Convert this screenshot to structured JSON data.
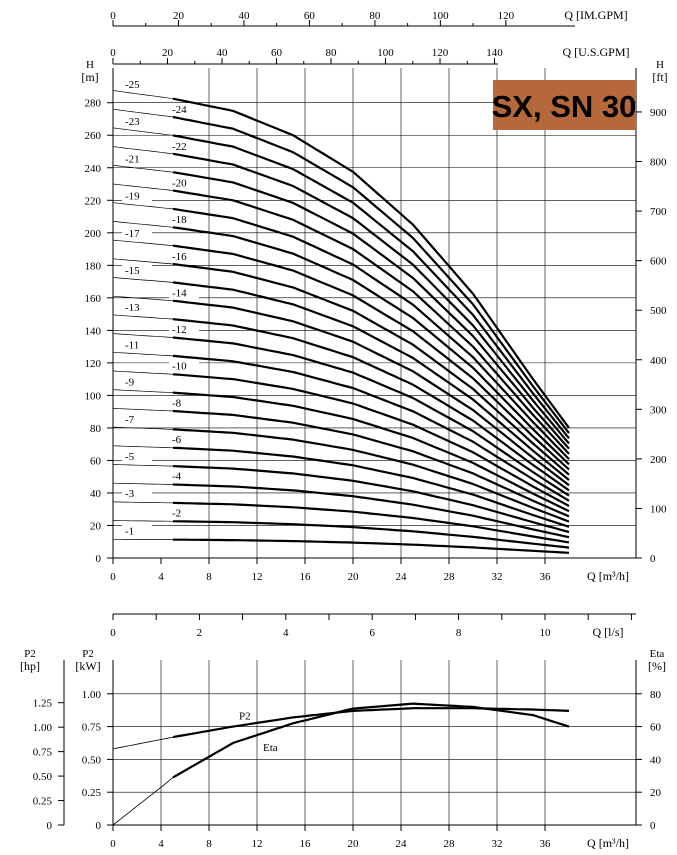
{
  "badge": {
    "text": "SX, SN 30",
    "color": "#b5683a"
  },
  "axes": {
    "imp_gpm": {
      "label": "Q  [IM.GPM]",
      "ticks": [
        "0",
        "20",
        "40",
        "60",
        "80",
        "100",
        "120"
      ]
    },
    "us_gpm": {
      "label": "Q  [U.S.GPM]",
      "ticks": [
        "0",
        "20",
        "40",
        "60",
        "80",
        "100",
        "120",
        "140"
      ]
    },
    "head_m": {
      "unit_top": "H",
      "unit_bottom": "[m]",
      "ticks": [
        "0",
        "20",
        "40",
        "60",
        "80",
        "100",
        "120",
        "140",
        "160",
        "180",
        "200",
        "220",
        "240",
        "260",
        "280"
      ]
    },
    "head_ft": {
      "unit_top": "H",
      "unit_bottom": "[ft]",
      "ticks": [
        "0",
        "100",
        "200",
        "300",
        "400",
        "500",
        "600",
        "700",
        "800",
        "900"
      ]
    },
    "flow_m3h": {
      "label": "Q  [m³/h]",
      "ticks": [
        "0",
        "4",
        "8",
        "12",
        "16",
        "20",
        "24",
        "28",
        "32",
        "36"
      ]
    },
    "flow_ls": {
      "label": "Q  [l/s]",
      "ticks": [
        "0",
        "2",
        "4",
        "6",
        "8",
        "10"
      ]
    },
    "p2_hp": {
      "unit_top": "P2",
      "unit_bottom": "[hp]",
      "ticks": [
        "0",
        "0.25",
        "0.50",
        "0.75",
        "1.00",
        "1.25"
      ]
    },
    "p2_kw": {
      "unit_top": "P2",
      "unit_bottom": "[kW]",
      "ticks": [
        "0",
        "0.25",
        "0.50",
        "0.75",
        "1.00"
      ]
    },
    "eta": {
      "unit_top": "Eta",
      "unit_bottom": "[%]",
      "ticks": [
        "0",
        "20",
        "40",
        "60",
        "80"
      ]
    }
  },
  "chart_data": [
    {
      "type": "line",
      "xlabel": "Q [m³/h]",
      "ylabel": "H [m]",
      "xlim": [
        0,
        44
      ],
      "ylim": [
        0,
        290
      ],
      "grid": true,
      "stage_labels": [
        "-1",
        "-2",
        "-3",
        "-4",
        "-5",
        "-6",
        "-7",
        "-8",
        "-9",
        "-10",
        "-11",
        "-12",
        "-13",
        "-14",
        "-15",
        "-16",
        "-17",
        "-18",
        "-19",
        "-20",
        "-21",
        "-22",
        "-23",
        "-24",
        "-25"
      ],
      "head_per_stage": {
        "x": [
          0,
          5,
          10,
          15,
          20,
          25,
          30,
          35,
          38
        ],
        "y": [
          11.5,
          11.3,
          11.0,
          10.4,
          9.5,
          8.2,
          6.5,
          4.4,
          3.2
        ]
      },
      "min_flow": 5,
      "max_flow": 38
    },
    {
      "type": "line",
      "xlabel": "Q [m³/h]",
      "xlim": [
        0,
        44
      ],
      "grid": true,
      "series": [
        {
          "name": "P2",
          "unit": "kW",
          "x": [
            0,
            5,
            10,
            15,
            20,
            25,
            30,
            35,
            38
          ],
          "y": [
            0.58,
            0.67,
            0.75,
            0.82,
            0.87,
            0.89,
            0.89,
            0.88,
            0.87
          ]
        },
        {
          "name": "Eta",
          "unit": "%",
          "x": [
            0,
            4,
            5,
            10,
            15,
            20,
            25,
            30,
            35,
            38
          ],
          "y": [
            0,
            23,
            29,
            50,
            62,
            71,
            74,
            72,
            67,
            60
          ]
        }
      ]
    }
  ]
}
